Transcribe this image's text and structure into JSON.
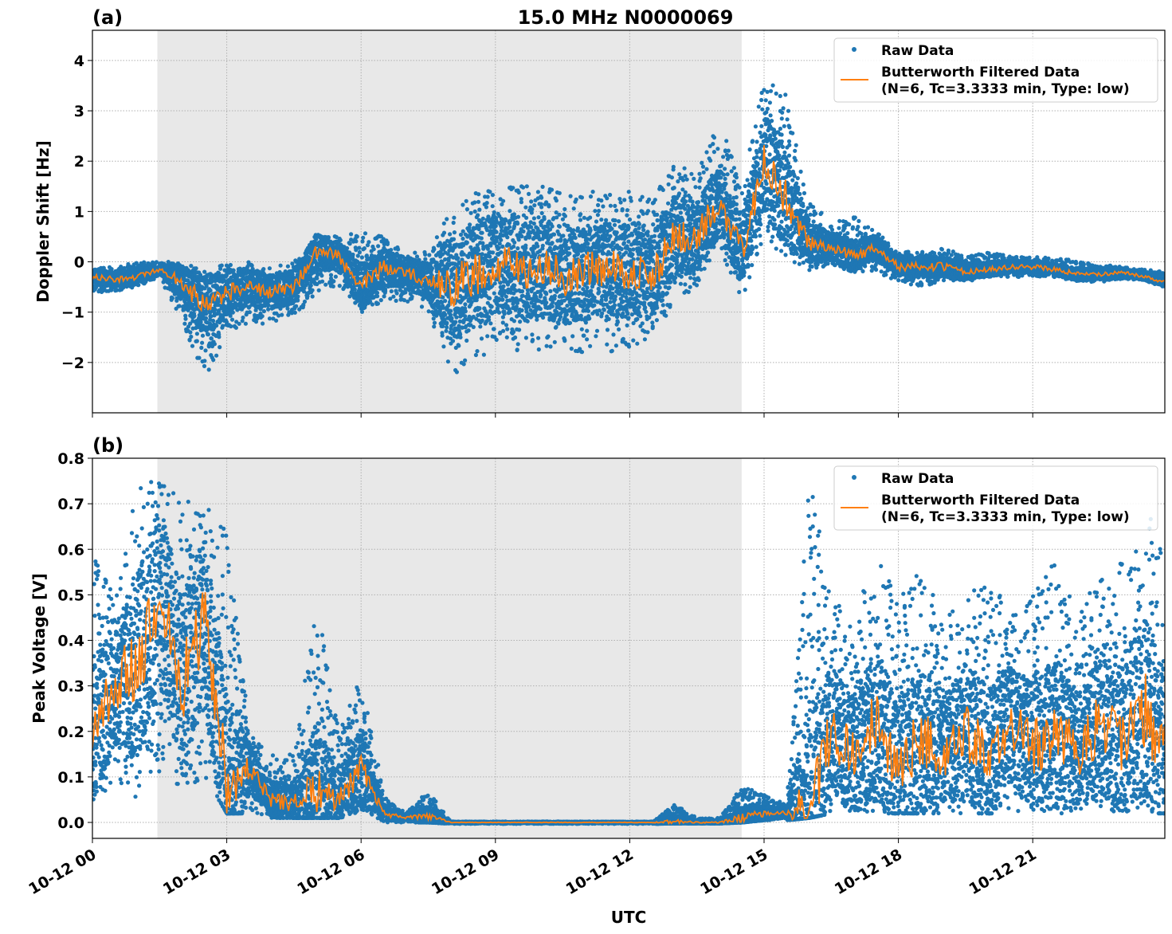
{
  "chart_data": {
    "type": "scatter",
    "title": "15.0 MHz N0000069",
    "xlabel": "UTC",
    "x_tick_labels": [
      "10-12 00",
      "10-12 03",
      "10-12 06",
      "10-12 09",
      "10-12 12",
      "10-12 15",
      "10-12 18",
      "10-12 21"
    ],
    "x_ticks_hours": [
      0,
      3,
      6,
      9,
      12,
      15,
      18,
      21
    ],
    "xlim_hours": [
      0,
      23.95
    ],
    "shaded_span_hours": [
      1.45,
      14.5
    ],
    "grid": true,
    "colors": {
      "raw": "#1f77b4",
      "filtered": "#ff7f0e",
      "shade": "#e8e8e8"
    },
    "t": [
      0,
      0.5,
      1,
      1.5,
      2,
      2.5,
      3,
      3.5,
      4,
      4.5,
      5,
      5.5,
      6,
      6.5,
      7,
      7.5,
      8,
      8.5,
      9,
      9.5,
      10,
      10.5,
      11,
      11.5,
      12,
      12.5,
      13,
      13.5,
      14,
      14.5,
      15,
      15.5,
      16,
      16.5,
      17,
      17.5,
      18,
      18.5,
      19,
      19.5,
      20,
      20.5,
      21,
      21.5,
      22,
      22.5,
      23,
      23.5,
      23.95
    ],
    "panels": [
      {
        "label": "(a)",
        "ylabel": "Doppler Shift [Hz]",
        "ylim": [
          -3,
          4.6
        ],
        "y_ticks": [
          -2,
          -1,
          0,
          1,
          2,
          3,
          4
        ],
        "y_tick_labels": [
          "−2",
          "−1",
          "0",
          "1",
          "2",
          "3",
          "4"
        ],
        "legend": {
          "placement": "upper-right",
          "raw": "Raw Data",
          "filtered_line1": "Butterworth Filtered Data",
          "filtered_line2": "(N=6, Tc=3.3333 min, Type: low)"
        },
        "filtered": [
          -0.3,
          -0.35,
          -0.3,
          -0.15,
          -0.4,
          -0.9,
          -0.6,
          -0.5,
          -0.6,
          -0.5,
          0.2,
          0.1,
          -0.5,
          -0.1,
          -0.2,
          -0.4,
          -0.5,
          -0.3,
          0,
          -0.2,
          -0.1,
          -0.3,
          -0.2,
          -0.1,
          -0.2,
          -0.3,
          0.5,
          0.5,
          1.2,
          0.2,
          2.0,
          1.2,
          0.4,
          0.3,
          0.1,
          0.3,
          -0.1,
          -0.1,
          -0.1,
          -0.2,
          -0.15,
          -0.1,
          -0.1,
          -0.15,
          -0.25,
          -0.25,
          -0.2,
          -0.3,
          -0.4
        ],
        "raw_low": [
          -0.6,
          -0.6,
          -0.5,
          -0.3,
          -1.2,
          -2.3,
          -1.5,
          -1.3,
          -1.2,
          -1.1,
          -0.6,
          -0.5,
          -1.0,
          -0.8,
          -0.8,
          -1.0,
          -2.3,
          -2.0,
          -1.8,
          -1.9,
          -1.8,
          -1.8,
          -1.8,
          -1.8,
          -1.7,
          -1.5,
          -0.8,
          -0.5,
          0.3,
          -0.8,
          0.5,
          0.0,
          -0.2,
          -0.1,
          -0.2,
          -0.2,
          -0.4,
          -0.5,
          -0.4,
          -0.4,
          -0.3,
          -0.3,
          -0.3,
          -0.3,
          -0.4,
          -0.4,
          -0.35,
          -0.4,
          -0.5
        ],
        "raw_high": [
          -0.1,
          -0.1,
          0.0,
          0.0,
          0.0,
          -0.2,
          0.0,
          0.0,
          -0.1,
          0.0,
          0.6,
          0.5,
          0.6,
          0.5,
          0.2,
          0.2,
          1.2,
          1.4,
          1.5,
          1.5,
          1.5,
          1.4,
          1.4,
          1.4,
          1.5,
          1.3,
          2.0,
          1.8,
          2.8,
          1.5,
          3.8,
          3.3,
          1.2,
          0.8,
          0.9,
          0.6,
          0.2,
          0.2,
          0.3,
          0.1,
          0.2,
          0.1,
          0.1,
          0.1,
          0.0,
          -0.05,
          -0.1,
          -0.15,
          -0.2
        ]
      },
      {
        "label": "(b)",
        "ylabel": "Peak Voltage [V]",
        "ylim": [
          -0.035,
          0.8
        ],
        "y_ticks": [
          0,
          0.1,
          0.2,
          0.3,
          0.4,
          0.5,
          0.6,
          0.7,
          0.8
        ],
        "y_tick_labels": [
          "0.0",
          "0.1",
          "0.2",
          "0.3",
          "0.4",
          "0.5",
          "0.6",
          "0.7",
          "0.8"
        ],
        "legend": {
          "placement": "upper-right",
          "raw": "Raw Data",
          "filtered_line1": "Butterworth Filtered Data",
          "filtered_line2": "(N=6, Tc=3.3333 min, Type: low)"
        },
        "filtered": [
          0.2,
          0.3,
          0.35,
          0.5,
          0.3,
          0.45,
          0.08,
          0.12,
          0.05,
          0.04,
          0.08,
          0.05,
          0.12,
          0.02,
          0.01,
          0.015,
          0,
          0,
          0,
          0,
          0,
          0,
          0,
          0,
          0,
          0,
          0.002,
          0,
          0,
          0.01,
          0.02,
          0.02,
          0.03,
          0.2,
          0.15,
          0.22,
          0.12,
          0.18,
          0.15,
          0.2,
          0.14,
          0.22,
          0.16,
          0.2,
          0.15,
          0.22,
          0.18,
          0.25,
          0.15
        ],
        "raw_low": [
          0.05,
          0.08,
          0.05,
          0.1,
          0.05,
          0.1,
          0.02,
          0.02,
          0.01,
          0.01,
          0.01,
          0.01,
          0.02,
          0.0,
          0.0,
          0.0,
          -0.003,
          -0.003,
          -0.003,
          -0.003,
          -0.003,
          -0.003,
          -0.003,
          -0.003,
          -0.003,
          -0.003,
          -0.002,
          -0.002,
          -0.002,
          0.0,
          0.005,
          0.005,
          0.01,
          0.02,
          0.02,
          0.02,
          0.02,
          0.02,
          0.02,
          0.02,
          0.02,
          0.02,
          0.02,
          0.02,
          0.02,
          0.02,
          0.02,
          0.02,
          0.02
        ],
        "raw_high": [
          0.6,
          0.5,
          0.75,
          0.76,
          0.7,
          0.72,
          0.65,
          0.2,
          0.15,
          0.15,
          0.49,
          0.2,
          0.32,
          0.06,
          0.02,
          0.07,
          0.002,
          0.002,
          0.002,
          0.002,
          0.002,
          0.002,
          0.002,
          0.002,
          0.002,
          0.002,
          0.04,
          0.01,
          0.01,
          0.08,
          0.06,
          0.04,
          0.76,
          0.5,
          0.45,
          0.6,
          0.48,
          0.59,
          0.45,
          0.5,
          0.55,
          0.45,
          0.5,
          0.58,
          0.45,
          0.55,
          0.57,
          0.7,
          0.6
        ]
      }
    ]
  }
}
